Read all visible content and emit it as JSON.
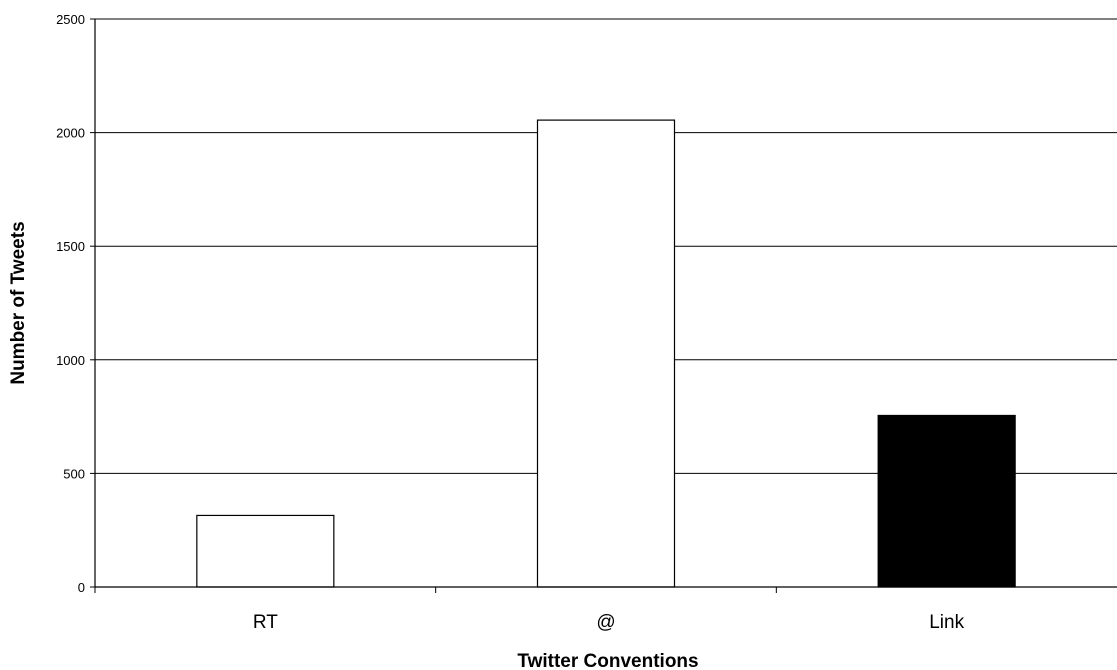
{
  "chart_data": {
    "type": "bar",
    "title": "",
    "xlabel": "Twitter Conventions",
    "ylabel": "Number of Tweets",
    "categories": [
      "RT",
      "@",
      "Link"
    ],
    "values": [
      315,
      2055,
      755
    ],
    "bar_fills": [
      "#ffffff",
      "#ffffff",
      "#000000"
    ],
    "ylim": [
      0,
      2500
    ],
    "yticks": [
      0,
      500,
      1000,
      1500,
      2000,
      2500
    ],
    "grid": true,
    "legend": "none"
  }
}
